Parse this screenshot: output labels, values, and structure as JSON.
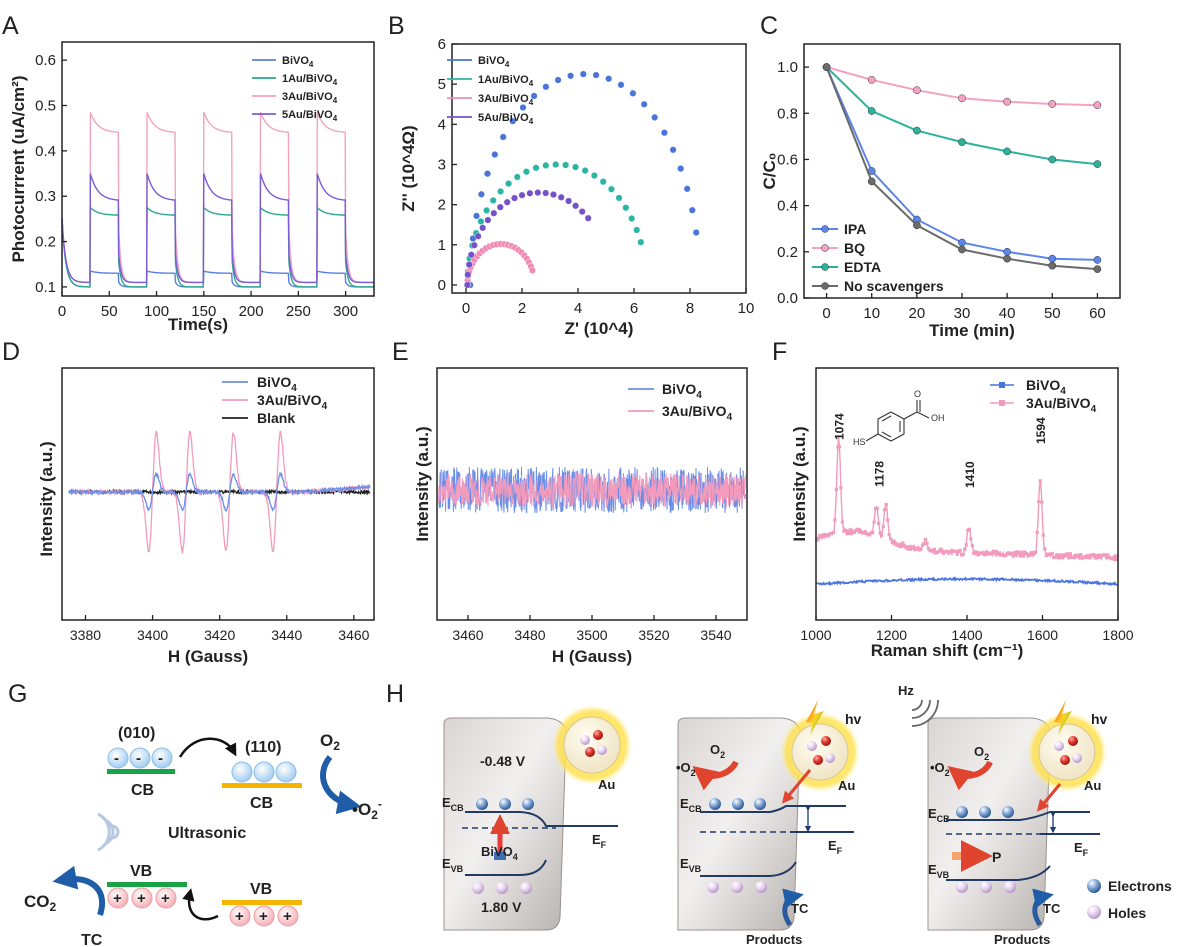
{
  "figure": {
    "panel_letters": [
      "A",
      "B",
      "C",
      "D",
      "E",
      "F",
      "G",
      "H"
    ]
  },
  "chart_data": [
    {
      "panel": "A",
      "type": "line",
      "xlabel": "Time(s)",
      "ylabel": "Photocurrrent (uA/cm²)",
      "xlim": [
        0,
        330
      ],
      "ylim": [
        0.08,
        0.64
      ],
      "xticks": [
        "0",
        "50",
        "100",
        "150",
        "200",
        "250",
        "300"
      ],
      "yticks": [
        "0.1",
        "0.2",
        "0.3",
        "0.4",
        "0.5",
        "0.6"
      ],
      "legend_position": "top-right",
      "light_on_intervals": [
        [
          30,
          60
        ],
        [
          90,
          120
        ],
        [
          150,
          180
        ],
        [
          210,
          240
        ],
        [
          270,
          300
        ]
      ],
      "series": [
        {
          "name": "BiVO4",
          "label_main": "BiVO",
          "label_sub": "4",
          "color": "#5b7fe0",
          "dark": 0.1,
          "on_peak": 0.135,
          "on_plateau": 0.13
        },
        {
          "name": "1Au/BiVO4",
          "label_main": "1Au/BiVO",
          "label_sub": "4",
          "color": "#2ba88f",
          "dark": 0.1,
          "on_peak": 0.275,
          "on_plateau": 0.258
        },
        {
          "name": "3Au/BiVO4",
          "label_main": "3Au/BiVO",
          "label_sub": "4",
          "color": "#f2a3c0",
          "dark": 0.11,
          "on_peak": 0.485,
          "on_plateau": 0.44
        },
        {
          "name": "5Au/BiVO4",
          "label_main": "5Au/BiVO",
          "label_sub": "4",
          "color": "#7b5bd6",
          "dark": 0.11,
          "on_peak": 0.35,
          "on_plateau": 0.29
        }
      ]
    },
    {
      "panel": "B",
      "type": "scatter",
      "xlabel": "Z' (10^4)",
      "ylabel": "Z'' (10^4Ω)",
      "xlim": [
        -0.5,
        10
      ],
      "ylim": [
        -0.2,
        6
      ],
      "xticks": [
        "0",
        "2",
        "4",
        "6",
        "8",
        "10"
      ],
      "yticks": [
        "0",
        "1",
        "2",
        "3",
        "4",
        "5",
        "6"
      ],
      "legend_position": "top-left",
      "series": [
        {
          "name": "BiVO4",
          "label_main": "BiVO",
          "label_sub": "4",
          "color": "#4a74d8",
          "center": 4.25,
          "radius": 4.1,
          "height": 5.25,
          "end": 8.3
        },
        {
          "name": "1Au/BiVO4",
          "label_main": "1Au/BiVO",
          "label_sub": "4",
          "color": "#2bb5a5",
          "center": 3.25,
          "radius": 3.2,
          "height": 3.0,
          "end": 6.25
        },
        {
          "name": "3Au/BiVO4",
          "label_main": "3Au/BiVO",
          "label_sub": "4",
          "color": "#f08cb4",
          "center": 1.25,
          "radius": 1.2,
          "height": 1.02,
          "end": 2.4
        },
        {
          "name": "5Au/BiVO4",
          "label_main": "5Au/BiVO",
          "label_sub": "4",
          "color": "#7552c9",
          "center": 2.6,
          "radius": 2.55,
          "height": 2.3,
          "end": 4.5
        }
      ]
    },
    {
      "panel": "C",
      "type": "line",
      "xlabel": "Time (min)",
      "ylabel": "C/C₀",
      "xlim": [
        -5,
        65
      ],
      "ylim": [
        0,
        1.1
      ],
      "x": [
        0,
        10,
        20,
        30,
        40,
        50,
        60
      ],
      "xticks": [
        "0",
        "10",
        "20",
        "30",
        "40",
        "50",
        "60"
      ],
      "yticks": [
        "0.0",
        "0.2",
        "0.4",
        "0.6",
        "0.8",
        "1.0"
      ],
      "legend_position": "bottom-left",
      "series": [
        {
          "name": "IPA",
          "color": "#5b85e6",
          "values": [
            1.0,
            0.55,
            0.34,
            0.24,
            0.2,
            0.17,
            0.165
          ]
        },
        {
          "name": "BQ",
          "color": "#f4a2c2",
          "values": [
            1.0,
            0.945,
            0.9,
            0.865,
            0.85,
            0.84,
            0.835
          ]
        },
        {
          "name": "EDTA",
          "color": "#2db39a",
          "values": [
            1.0,
            0.81,
            0.725,
            0.675,
            0.635,
            0.6,
            0.58
          ]
        },
        {
          "name": "No scavengers",
          "color": "#6b6b6b",
          "values": [
            1.0,
            0.505,
            0.315,
            0.21,
            0.17,
            0.14,
            0.125
          ]
        }
      ]
    },
    {
      "panel": "D",
      "type": "line",
      "xlabel": "H (Gauss)",
      "ylabel": "Intensity (a.u.)",
      "xlim": [
        3373,
        3466
      ],
      "xticks": [
        "3380",
        "3400",
        "3420",
        "3440",
        "3460"
      ],
      "legend_position": "top-right",
      "peak_positions": [
        3400,
        3410,
        3423,
        3437
      ],
      "series": [
        {
          "name": "BiVO4",
          "label_main": "BiVO",
          "label_sub": "4",
          "color": "#6b8ee8",
          "relative_amplitude": 0.3
        },
        {
          "name": "3Au/BiVO4",
          "label_main": "3Au/BiVO",
          "label_sub": "4",
          "color": "#f29bbd",
          "relative_amplitude": 1.0
        },
        {
          "name": "Blank",
          "color": "#222222",
          "relative_amplitude": 0.0
        }
      ]
    },
    {
      "panel": "E",
      "type": "line",
      "xlabel": "H (Gauss)",
      "ylabel": "Intensity (a.u.)",
      "xlim": [
        3450,
        3550
      ],
      "xticks": [
        "3460",
        "3480",
        "3500",
        "3520",
        "3540"
      ],
      "legend_position": "top-right",
      "series": [
        {
          "name": "BiVO4",
          "label_main": "BiVO",
          "label_sub": "4",
          "color": "#6b8ee8"
        },
        {
          "name": "3Au/BiVO4",
          "label_main": "3Au/BiVO",
          "label_sub": "4",
          "color": "#f29bbd"
        }
      ]
    },
    {
      "panel": "F",
      "type": "line",
      "xlabel": "Raman shift (cm⁻¹)",
      "ylabel": "Intensity (a.u.)",
      "xlim": [
        1000,
        1800
      ],
      "xticks": [
        "1000",
        "1200",
        "1400",
        "1600",
        "1800"
      ],
      "legend_position": "top-right",
      "peak_labels": [
        "1074",
        "1178",
        "1410",
        "1594"
      ],
      "peaks": [
        {
          "x": 1060,
          "height": 0.85
        },
        {
          "x": 1160,
          "height": 0.25
        },
        {
          "x": 1185,
          "height": 0.32
        },
        {
          "x": 1290,
          "height": 0.1
        },
        {
          "x": 1405,
          "height": 0.24
        },
        {
          "x": 1594,
          "height": 0.68
        }
      ],
      "structure_labels": [
        "HS",
        "OH",
        "O"
      ],
      "series": [
        {
          "name": "BiVO4",
          "label_main": "BiVO",
          "label_sub": "4",
          "color": "#4a74e0"
        },
        {
          "name": "3Au/BiVO4",
          "label_main": "3Au/BiVO",
          "label_sub": "4",
          "color": "#f29bbd"
        }
      ]
    }
  ],
  "panelG": {
    "facet_010": "(010)",
    "facet_110": "(110)",
    "cb": "CB",
    "vb": "VB",
    "o2": "O",
    "o2_sub": "2",
    "superoxide": "•O",
    "superoxide_sub": "2",
    "superoxide_sup": "-",
    "ultrasonic": "Ultrasonic",
    "co2": "CO",
    "co2_sub": "2",
    "tc": "TC",
    "minus": "-",
    "plus": "+"
  },
  "panelH": {
    "cb_potential": "-0.48 V",
    "vb_potential": "1.80 V",
    "ecb": "E",
    "ecb_sub": "CB",
    "evb": "E",
    "evb_sub": "VB",
    "ef": "E",
    "ef_sub": "F",
    "bivo4": "BiVO",
    "bivo4_sub": "4",
    "au": "Au",
    "hv": "hv",
    "hz": "Hz",
    "o2": "O",
    "o2_sub": "2",
    "superoxide": "•O",
    "superoxide_sub": "2",
    "superoxide_sup": "-",
    "tc": "TC",
    "products": "Products",
    "p": "P",
    "electrons": "Electrons",
    "holes": "Holes"
  }
}
